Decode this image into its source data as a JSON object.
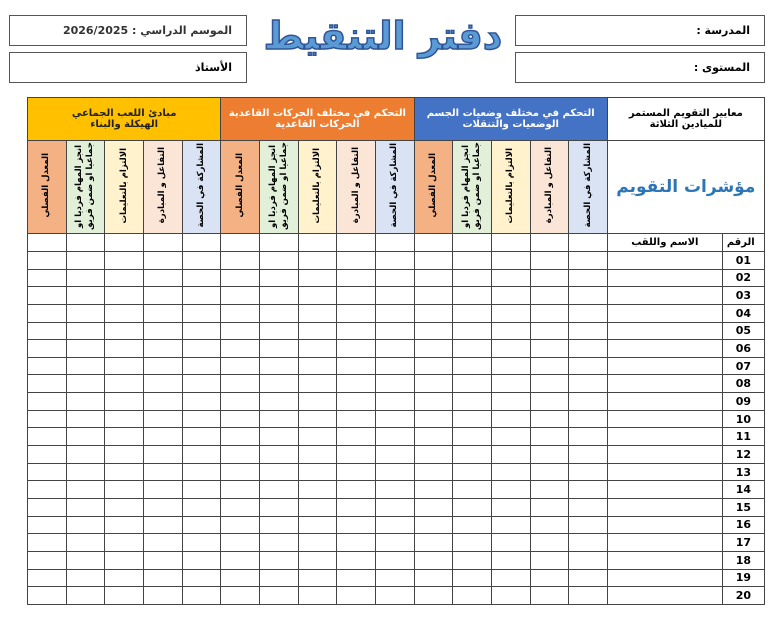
{
  "header": {
    "season": "الموسم الدراسي : 2026/2025",
    "teacher": "الأستاذ",
    "title": "دفتر التنقيط",
    "school": "المدرسة :",
    "level": "المستوى :"
  },
  "table": {
    "criteria_label": [
      "معايير التقويم المستمر",
      "للميادين الثلاثة"
    ],
    "indicators_label": "مؤشرات التقويم",
    "number_label": "الرقم",
    "name_label": "الاسم واللقب",
    "domains": [
      {
        "lines": [
          "التحكم في مختلف وضعيات الجسم",
          "الوضعيات والتنقلات"
        ],
        "color": "#4472c4"
      },
      {
        "lines": [
          "التحكم في مختلف الحركات القاعدية",
          "الحركات القاعدية"
        ],
        "color": "#ed7d31"
      },
      {
        "lines": [
          "مبادئ اللعب الجماعي",
          "الهيكلة والبناء"
        ],
        "color": "#ffc000"
      }
    ],
    "indicators": [
      {
        "label": "المشاركة في الحصة",
        "color": "#dae3f3"
      },
      {
        "label": "التفاعل و المبادرة",
        "color": "#fbe5d6"
      },
      {
        "label": "الالتزام بالتعليمات",
        "color": "#fff2cc"
      },
      {
        "label": "انجز المهام فرديا او جماعيا او ضمن فريق",
        "color": "#e2f0d9"
      },
      {
        "label": "المعدل الفصلي",
        "color": "#f4b183"
      }
    ],
    "rows": [
      "01",
      "02",
      "03",
      "04",
      "05",
      "06",
      "07",
      "08",
      "09",
      "10",
      "11",
      "12",
      "13",
      "14",
      "15",
      "16",
      "17",
      "18",
      "19",
      "20"
    ]
  }
}
